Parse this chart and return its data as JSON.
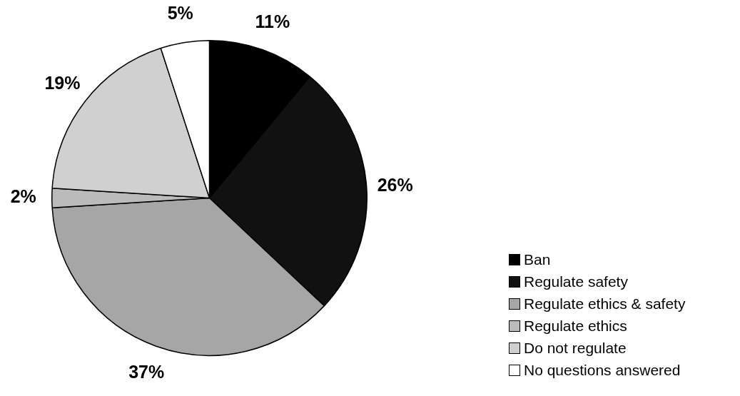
{
  "chart_data": {
    "type": "pie",
    "categories": [
      "Ban",
      "Regulate safety",
      "Regulate ethics & safety",
      "Regulate ethics",
      "Do not regulate",
      "No questions answered"
    ],
    "values": [
      11,
      26,
      37,
      2,
      19,
      5
    ],
    "colors": [
      "#000000",
      "#111111",
      "#a6a6a6",
      "#bbbbbb",
      "#d0d0d0",
      "#ffffff"
    ],
    "value_labels": [
      "11%",
      "26%",
      "37%",
      "2%",
      "19%",
      "5%"
    ],
    "legend": "bottom right"
  }
}
